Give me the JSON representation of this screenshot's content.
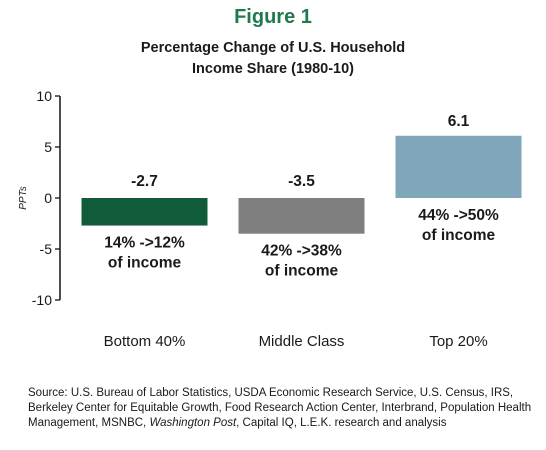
{
  "figure_label": "Figure 1",
  "title_lines": [
    "Percentage Change of U.S. Household",
    "Income Share (1980-10)"
  ],
  "source": {
    "before_italic": "Source: U.S. Bureau of Labor Statistics, USDA Economic Research Service, U.S. Census, IRS, Berkeley Center for Equitable Growth, Food Research Action Center, Interbrand, Population Health Management, MSNBC, ",
    "italic": "Washington Post",
    "after_italic": ", Capital IQ, L.E.K. research and analysis"
  },
  "chart_data": {
    "type": "bar",
    "categories": [
      "Bottom 40%",
      "Middle Class",
      "Top 20%"
    ],
    "values": [
      -2.7,
      -3.5,
      6.1
    ],
    "value_labels": [
      "-2.7",
      "-3.5",
      "6.1"
    ],
    "annotations": [
      [
        "14% ->12%",
        "of income"
      ],
      [
        "42% ->38%",
        "of income"
      ],
      [
        "44% ->50%",
        "of income"
      ]
    ],
    "bar_colors": [
      "#0f5b3a",
      "#7f7f7f",
      "#7fa6b9"
    ],
    "ylabel": "PPTs",
    "ylim": [
      -10,
      10
    ],
    "yticks": [
      10,
      5,
      0,
      -5,
      -10
    ],
    "grid": false,
    "title": "Percentage Change of U.S. Household Income Share (1980-10)"
  }
}
